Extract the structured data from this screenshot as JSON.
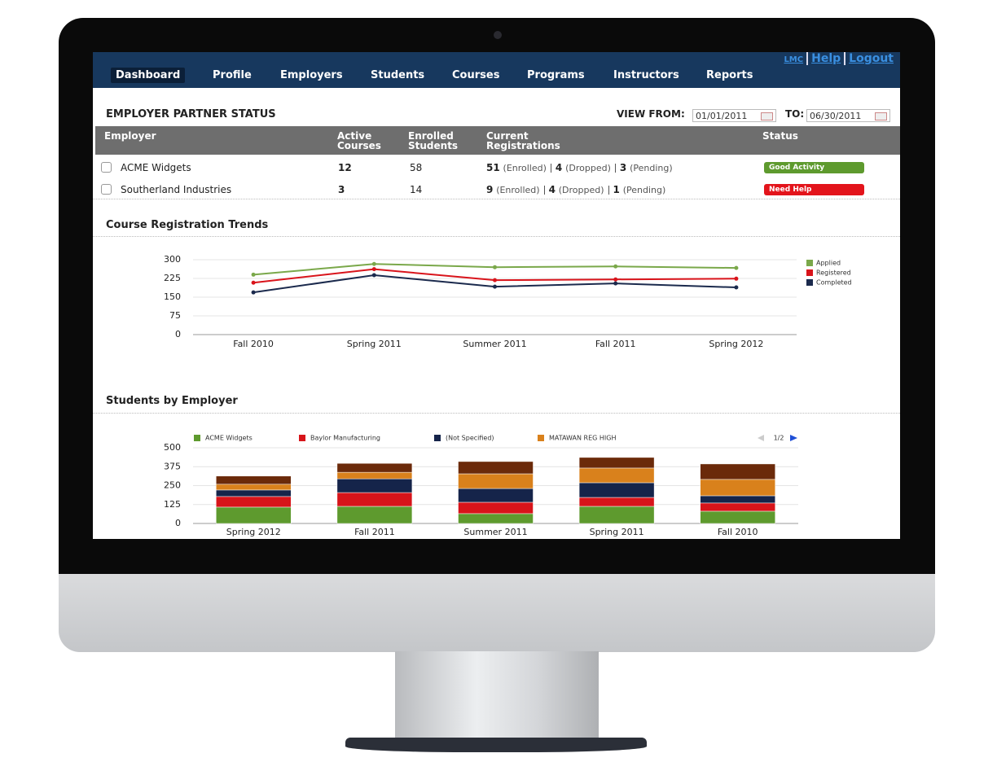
{
  "nav": {
    "items": [
      "Dashboard",
      "Profile",
      "Employers",
      "Students",
      "Courses",
      "Programs",
      "Instructors",
      "Reports"
    ],
    "links": [
      "LMC",
      "Help",
      "Logout"
    ]
  },
  "panel": {
    "title": "EMPLOYER PARTNER STATUS",
    "view_from_label": "VIEW FROM:",
    "from_date": "01/01/2011",
    "to_label": "TO:",
    "to_date": "06/30/2011"
  },
  "table": {
    "columns": [
      "Employer",
      "Active Courses",
      "Enrolled Students",
      "Current Registrations",
      "Status"
    ],
    "registration_labels": [
      "(Enrolled)",
      "(Dropped)",
      "(Pending)"
    ],
    "rows": [
      {
        "employer": "ACME Widgets",
        "active_courses": 12,
        "enrolled_students": 58,
        "registrations": [
          51,
          4,
          3
        ],
        "status": "Good Activity",
        "status_color": "#5e9a2e"
      },
      {
        "employer": "Southerland Industries",
        "active_courses": 3,
        "enrolled_students": 14,
        "registrations": [
          9,
          4,
          1
        ],
        "status": "Need Help",
        "status_color": "#e3141b"
      }
    ]
  },
  "chart_data": [
    {
      "type": "line",
      "title": "Course Registration Trends",
      "categories": [
        "Fall 2010",
        "Spring 2011",
        "Summer 2011",
        "Fall 2011",
        "Spring 2012"
      ],
      "series": [
        {
          "name": "Applied",
          "color": "#7aa84a",
          "values": [
            240,
            283,
            270,
            273,
            267
          ]
        },
        {
          "name": "Registered",
          "color": "#d9141b",
          "values": [
            208,
            262,
            218,
            221,
            224
          ]
        },
        {
          "name": "Completed",
          "color": "#1b2a4d",
          "values": [
            169,
            238,
            192,
            205,
            189
          ]
        }
      ],
      "ylim": [
        0,
        300
      ],
      "yticks": [
        0,
        75,
        150,
        225,
        300
      ],
      "grid": true,
      "legend": "right"
    },
    {
      "type": "stacked-bar",
      "title": "Students by Employer",
      "pagination": "1/2",
      "categories": [
        "Spring 2012",
        "Fall 2011",
        "Summer 2011",
        "Spring 2011",
        "Fall 2010"
      ],
      "series": [
        {
          "name": "ACME Widgets",
          "color": "#5e9a2e",
          "values": [
            108,
            113,
            65,
            113,
            81
          ]
        },
        {
          "name": "Baylor Manufacturing",
          "color": "#d7141a",
          "values": [
            70,
            91,
            75,
            59,
            54
          ]
        },
        {
          "name": "(Not Specified)",
          "color": "#15244a",
          "values": [
            43,
            91,
            91,
            97,
            48
          ]
        },
        {
          "name": "MATAWAN REG HIGH",
          "color": "#d9811c",
          "values": [
            38,
            43,
            97,
            97,
            108
          ]
        },
        {
          "color": "#6b2a0a",
          "values": [
            54,
            59,
            81,
            70,
            102
          ]
        }
      ],
      "ylim": [
        0,
        500
      ],
      "yticks": [
        0,
        125,
        250,
        375,
        500
      ],
      "grid": true,
      "legend": "top"
    }
  ]
}
